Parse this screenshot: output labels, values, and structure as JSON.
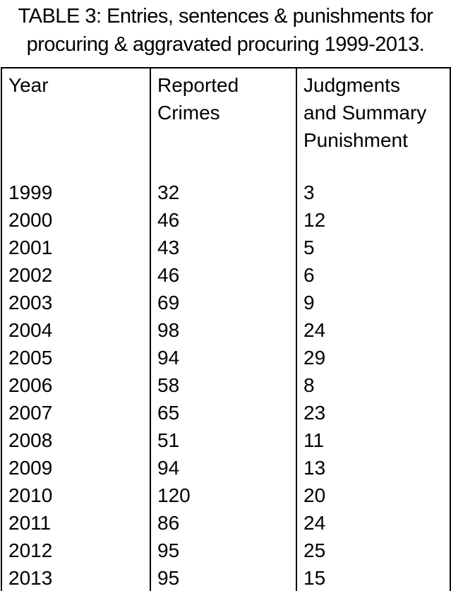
{
  "colors": {
    "background": "#ffffff",
    "text": "#000000",
    "border": "#000000"
  },
  "chart_data": {
    "type": "table",
    "title": "TABLE 3: Entries, sentences & punishments for procuring & aggravated procuring 1999-2013.",
    "title_lines": [
      "TABLE 3: Entries, sentences & punishments for",
      "procuring & aggravated procuring 1999-2013."
    ],
    "columns": [
      "Year",
      "Reported Crimes",
      "Judgments and Summary Punishment"
    ],
    "header_lines": [
      [
        "Year"
      ],
      [
        "Reported",
        "Crimes"
      ],
      [
        "Judgments",
        "and Summary",
        "Punishment"
      ]
    ],
    "rows": [
      [
        "1999",
        "32",
        "3"
      ],
      [
        "2000",
        "46",
        "12"
      ],
      [
        "2001",
        "43",
        "5"
      ],
      [
        "2002",
        "46",
        "6"
      ],
      [
        "2003",
        "69",
        "9"
      ],
      [
        "2004",
        "98",
        "24"
      ],
      [
        "2005",
        "94",
        "29"
      ],
      [
        "2006",
        "58",
        "8"
      ],
      [
        "2007",
        "65",
        "23"
      ],
      [
        "2008",
        "51",
        "11"
      ],
      [
        "2009",
        "94",
        "13"
      ],
      [
        "2010",
        "120",
        "20"
      ],
      [
        "2011",
        "86",
        "24"
      ],
      [
        "2012",
        "95",
        "25"
      ],
      [
        "2013",
        "95",
        "15"
      ]
    ]
  }
}
